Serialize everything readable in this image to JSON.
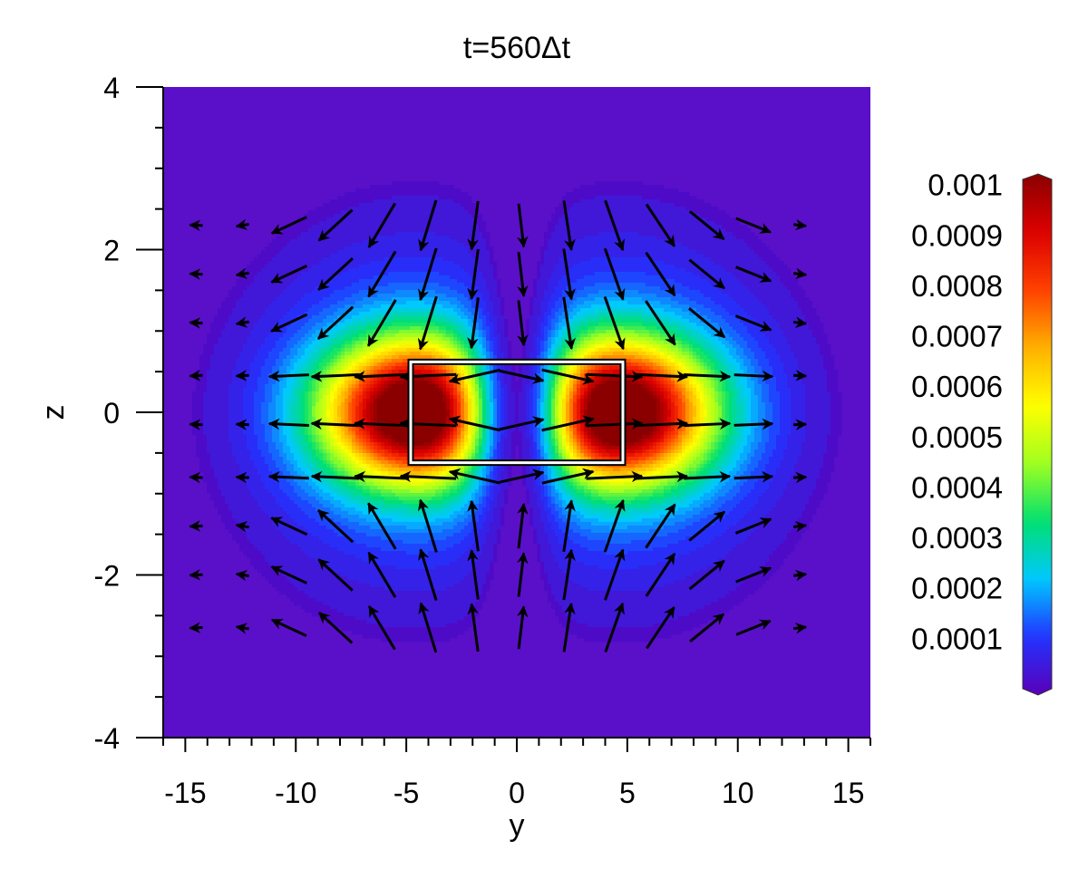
{
  "chart_data": {
    "type": "heatmap",
    "title": "t=560Δt",
    "xlabel": "y",
    "ylabel": "z",
    "xlim": [
      -16,
      16
    ],
    "ylim": [
      -4,
      4
    ],
    "x_ticks": [
      "-15",
      "-10",
      "-5",
      "0",
      "5",
      "10",
      "15"
    ],
    "y_ticks": [
      "4",
      "2",
      "0",
      "-2",
      "-4"
    ],
    "x_tick_values": [
      -15,
      -10,
      -5,
      0,
      5,
      10,
      15
    ],
    "y_tick_values": [
      4,
      2,
      0,
      -2,
      -4
    ],
    "x_minor_step": 1,
    "y_minor_step": 0.5,
    "colorbar": {
      "labels": [
        "0.001",
        "0.0009",
        "0.0008",
        "0.0007",
        "0.0006",
        "0.0005",
        "0.0004",
        "0.0003",
        "0.0002",
        "0.0001"
      ],
      "values": [
        0.001,
        0.0009,
        0.0008,
        0.0007,
        0.0006,
        0.0005,
        0.0004,
        0.0003,
        0.0002,
        0.0001
      ],
      "range": [
        0,
        0.001
      ],
      "colors": [
        "#5a00b8",
        "#2233ff",
        "#00c8ff",
        "#00e070",
        "#a0ff20",
        "#ffff00",
        "#ffb000",
        "#ff4000",
        "#dc0000",
        "#8a0000"
      ]
    },
    "background_color": "#5a10c8",
    "field": {
      "description_values": "magnitude peaks near (y=-4.5, z=0) and (y=4.5, z=0)",
      "peak_value": 0.001,
      "lobe_centers": [
        [
          -4.5,
          0
        ],
        [
          4.5,
          0
        ]
      ]
    },
    "rectangle": {
      "y": [
        -4.8,
        4.8
      ],
      "z": [
        -0.62,
        0.62
      ]
    },
    "vector_grid": {
      "y": [
        -14.5,
        -12.4,
        -10.3,
        -8.2,
        -6.1,
        -4.0,
        -1.9,
        0.2,
        2.3,
        4.4,
        6.5,
        8.6,
        10.7,
        12.8
      ],
      "z": [
        2.3,
        1.7,
        1.1,
        0.45,
        -0.15,
        -0.8,
        -1.4,
        -2.0,
        -2.65
      ]
    }
  }
}
